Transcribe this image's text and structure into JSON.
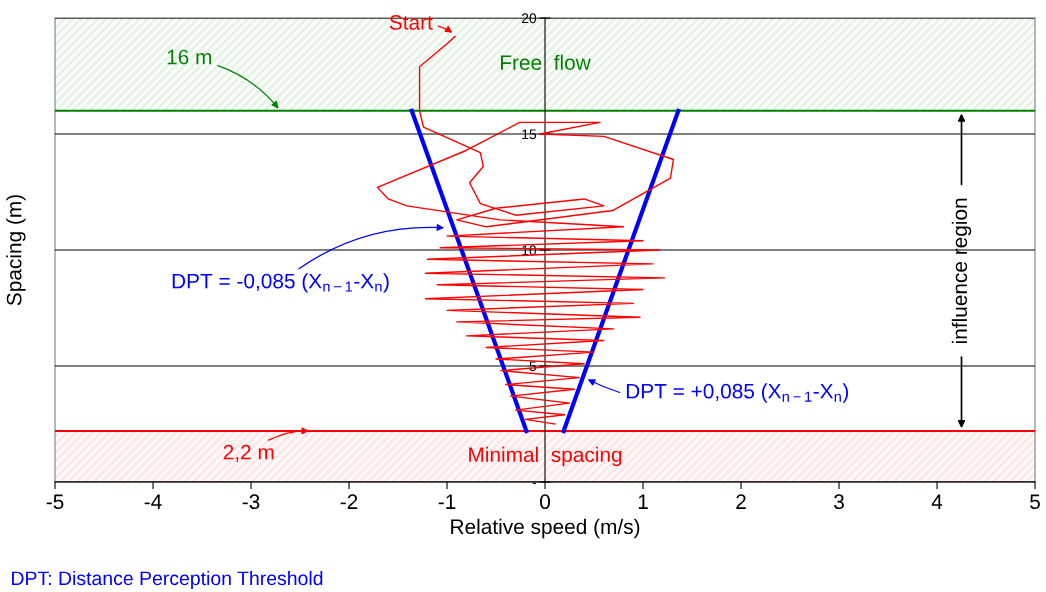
{
  "chart_data": {
    "type": "line",
    "xlabel": "Relative speed (m/s)",
    "ylabel": "Spacing (m)",
    "xlim": [
      -5,
      5
    ],
    "xticks": [
      -5,
      -4,
      -3,
      -2,
      -1,
      0,
      1,
      2,
      3,
      4,
      5
    ],
    "ylim": [
      0,
      20
    ],
    "yticks": [
      {
        "value": 0,
        "label": "-"
      },
      5,
      10,
      15,
      20
    ],
    "grid": "y",
    "marker": "none",
    "line_style": "solid",
    "series": [
      {
        "color": "#ff0000",
        "x": [
          -0.92,
          -0.97,
          -1.28,
          -1.28,
          -1.24,
          -0.66,
          -0.63,
          -0.77,
          -0.66,
          -0.3,
          0.6,
          0.4,
          -0.5,
          -0.9,
          -0.6,
          0.69,
          1.28,
          1.31,
          0.6,
          -0.05,
          0.56,
          -0.26,
          -0.8,
          -1.71,
          -1.6,
          -1.41,
          -0.46,
          0.8,
          -1.0,
          1.0,
          -1.07,
          1.17,
          -1.2,
          1.1,
          -1.22,
          1.22,
          -1.1,
          1.0,
          -1.22,
          0.9,
          -1.0,
          0.97,
          -0.9,
          0.7,
          -0.8,
          0.6,
          -0.6,
          0.5,
          -0.5,
          0.4,
          -0.45,
          0.35,
          -0.4,
          0.3,
          -0.35,
          0.25,
          -0.3,
          0.2,
          -0.2,
          0.1
        ],
        "values": [
          19.2,
          19.0,
          17.9,
          16.0,
          15.3,
          14.2,
          13.6,
          12.9,
          12.0,
          11.5,
          11.9,
          12.2,
          11.8,
          11.3,
          11.0,
          11.7,
          13.1,
          13.9,
          14.9,
          15.0,
          15.5,
          15.5,
          14.3,
          12.7,
          12.2,
          11.9,
          11.3,
          11.0,
          10.6,
          10.4,
          10.1,
          10.0,
          9.6,
          9.4,
          9.0,
          8.8,
          8.5,
          8.3,
          7.9,
          7.7,
          7.4,
          7.1,
          6.9,
          6.6,
          6.3,
          6.1,
          5.8,
          5.6,
          5.3,
          5.1,
          4.8,
          4.5,
          4.2,
          4.0,
          3.7,
          3.4,
          3.1,
          2.9,
          2.7,
          2.5
        ]
      },
      {
        "color": "#0000ff",
        "x": [
          -1.36,
          -0.19
        ],
        "values": [
          16,
          2.2
        ]
      },
      {
        "color": "#0000ff",
        "x": [
          1.36,
          0.19
        ],
        "values": [
          16,
          2.2
        ]
      }
    ],
    "ref_lines": [
      {
        "axis": "y",
        "value": 16,
        "color": "#008000"
      },
      {
        "axis": "y",
        "value": 2.2,
        "color": "#ff0000"
      }
    ],
    "bands": [
      {
        "axis": "y",
        "from": 16,
        "to": 20,
        "label": "Free  flow",
        "color": "#008000"
      },
      {
        "axis": "y",
        "from": 0,
        "to": 2.2,
        "label": "Minimal  spacing",
        "color": "#ff0000"
      }
    ],
    "annotations": [
      {
        "text": "Start",
        "x": -0.92,
        "y": 19.3
      },
      {
        "text": "16 m",
        "x": -2.7,
        "y": 16
      },
      {
        "text": "2,2 m",
        "x": -2.38,
        "y": 2.2
      },
      {
        "text": "DPT = -0,085 (X$_{n−1}$-X$_{n}$)",
        "x": -1.0,
        "y": 10.95
      },
      {
        "text": "DPT = +0,085 (X$_{n−1}$-X$_{n}$)",
        "x": 0.41,
        "y": 4.48
      },
      "influence region",
      "DPT: Distance Perception Threshold"
    ]
  }
}
